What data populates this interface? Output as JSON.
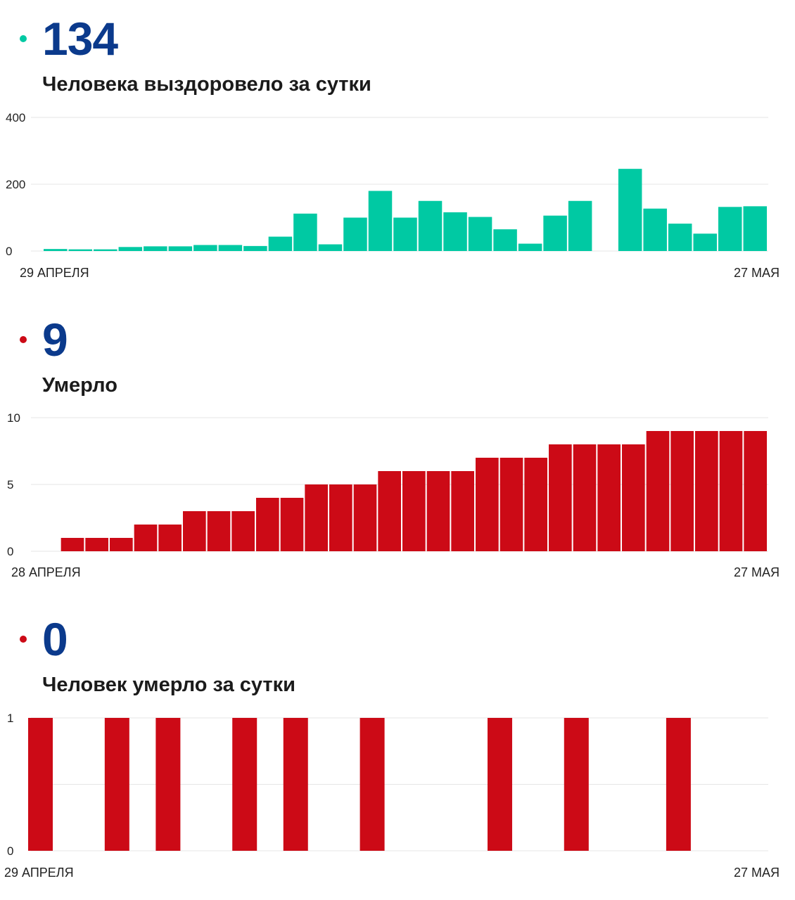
{
  "colors": {
    "recovered": "#00c9a3",
    "deaths": "#cc0a16",
    "big_number": "#0b3a8c",
    "grid": "#e6e6e6"
  },
  "chart_data": [
    {
      "type": "bar",
      "big_number": "134",
      "subtitle": "Человека выздоровело за сутки",
      "x_start_label": "29 АПРЕЛЯ",
      "x_end_label": "27 МАЯ",
      "yticks": [
        "0",
        "200",
        "400"
      ],
      "ylim": [
        0,
        400
      ],
      "grid": true,
      "values": [
        6,
        5,
        5,
        12,
        14,
        14,
        18,
        18,
        15,
        43,
        112,
        20,
        100,
        180,
        100,
        150,
        116,
        102,
        65,
        22,
        106,
        150,
        0,
        246,
        127,
        82,
        52,
        132,
        134
      ]
    },
    {
      "type": "bar",
      "big_number": "9",
      "subtitle": "Умерло",
      "x_start_label": "28 АПРЕЛЯ",
      "x_end_label": "27 МАЯ",
      "yticks": [
        "0",
        "5",
        "10"
      ],
      "ylim": [
        0,
        10
      ],
      "grid": true,
      "values": [
        0,
        1,
        1,
        1,
        2,
        2,
        3,
        3,
        3,
        4,
        4,
        5,
        5,
        5,
        6,
        6,
        6,
        6,
        7,
        7,
        7,
        8,
        8,
        8,
        8,
        9,
        9,
        9,
        9,
        9
      ]
    },
    {
      "type": "bar",
      "big_number": "0",
      "subtitle": "Человек умерло за сутки",
      "x_start_label": "29 АПРЕЛЯ",
      "x_end_label": "27 МАЯ",
      "yticks": [
        "0",
        "1"
      ],
      "ylim": [
        0,
        1
      ],
      "grid": true,
      "values": [
        1,
        0,
        0,
        1,
        0,
        1,
        0,
        0,
        1,
        0,
        1,
        0,
        0,
        1,
        0,
        0,
        0,
        0,
        1,
        0,
        0,
        1,
        0,
        0,
        0,
        1,
        0,
        0,
        0
      ]
    }
  ]
}
